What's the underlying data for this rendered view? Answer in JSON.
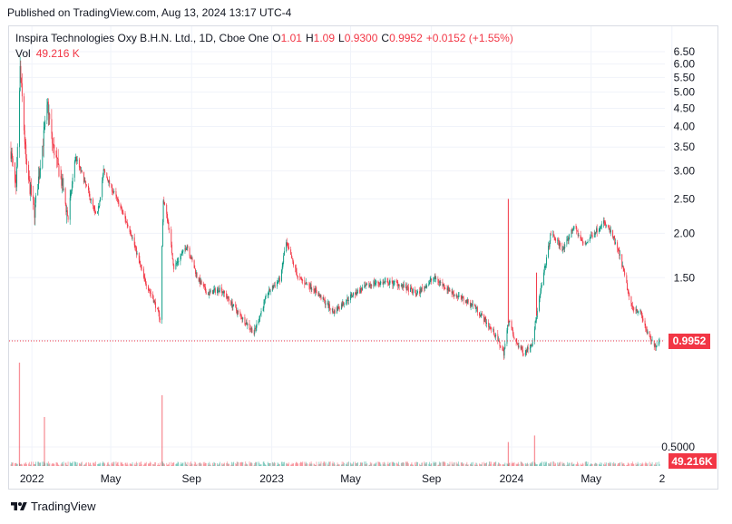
{
  "published": "Published on TradingView.com, Aug 13, 2024 13:17 UTC-4",
  "legend": {
    "title": "Inspira Technologies Oxy B.H.N. Ltd., 1D, Cboe One",
    "open_label": "O",
    "open": "1.01",
    "high_label": "H",
    "high": "1.09",
    "low_label": "L",
    "low": "0.9300",
    "close_label": "C",
    "close": "0.9952",
    "change": "+0.0152 (+1.55%)",
    "vol_label": "Vol",
    "vol": "49.216 K"
  },
  "footer": {
    "brand": "TradingView",
    "logo_icon": "tradingview-logo-icon"
  },
  "colors": {
    "up": "#089981",
    "down": "#f23645",
    "grid": "#f0f3fa",
    "price_line": "#f23645"
  },
  "chart_data": {
    "type": "candlestick",
    "y_scale": "log",
    "ylim": [
      0.45,
      7.2
    ],
    "y_ticks": [
      0.5,
      1.0,
      1.5,
      2.0,
      2.5,
      3.0,
      3.5,
      4.0,
      4.5,
      5.0,
      5.5,
      6.0,
      6.5
    ],
    "y_tick_labels": [
      "0.5000",
      "",
      "1.50",
      "2.00",
      "2.50",
      "3.00",
      "3.50",
      "4.00",
      "4.50",
      "5.00",
      "5.50",
      "6.00",
      "6.50"
    ],
    "x_range": [
      "2021-11-30",
      "2024-08-13"
    ],
    "x_ticks": [
      {
        "date": "2022-01-01",
        "label": "2022"
      },
      {
        "date": "2022-05-01",
        "label": "May"
      },
      {
        "date": "2022-09-01",
        "label": "Sep"
      },
      {
        "date": "2023-01-01",
        "label": "2023"
      },
      {
        "date": "2023-05-01",
        "label": "May"
      },
      {
        "date": "2023-09-01",
        "label": "Sep"
      },
      {
        "date": "2024-01-01",
        "label": "2024"
      },
      {
        "date": "2024-05-01",
        "label": "May"
      },
      {
        "date": "2024-09-01",
        "label": "2"
      }
    ],
    "last_price": 0.9952,
    "last_price_label": "0.9952",
    "last_volume_label": "49.216K",
    "price_keypoints": [
      [
        "2021-11-30",
        3.4
      ],
      [
        "2021-12-08",
        2.6
      ],
      [
        "2021-12-14",
        5.8
      ],
      [
        "2021-12-18",
        4.5
      ],
      [
        "2021-12-24",
        3.0
      ],
      [
        "2022-01-05",
        2.3
      ],
      [
        "2022-01-15",
        3.3
      ],
      [
        "2022-01-25",
        4.6
      ],
      [
        "2022-02-01",
        3.6
      ],
      [
        "2022-02-15",
        2.8
      ],
      [
        "2022-02-25",
        2.2
      ],
      [
        "2022-03-08",
        3.3
      ],
      [
        "2022-03-25",
        2.7
      ],
      [
        "2022-04-10",
        2.2
      ],
      [
        "2022-04-20",
        3.0
      ],
      [
        "2022-05-10",
        2.5
      ],
      [
        "2022-06-01",
        2.0
      ],
      [
        "2022-06-20",
        1.5
      ],
      [
        "2022-07-05",
        1.3
      ],
      [
        "2022-07-15",
        1.15
      ],
      [
        "2022-07-20",
        2.5
      ],
      [
        "2022-07-28",
        2.1
      ],
      [
        "2022-08-05",
        1.6
      ],
      [
        "2022-08-25",
        1.85
      ],
      [
        "2022-09-10",
        1.5
      ],
      [
        "2022-09-25",
        1.35
      ],
      [
        "2022-10-15",
        1.4
      ],
      [
        "2022-11-10",
        1.2
      ],
      [
        "2022-12-05",
        1.05
      ],
      [
        "2022-12-25",
        1.35
      ],
      [
        "2023-01-15",
        1.5
      ],
      [
        "2023-01-22",
        1.9
      ],
      [
        "2023-02-10",
        1.5
      ],
      [
        "2023-03-05",
        1.4
      ],
      [
        "2023-04-05",
        1.2
      ],
      [
        "2023-05-05",
        1.35
      ],
      [
        "2023-06-05",
        1.45
      ],
      [
        "2023-07-10",
        1.45
      ],
      [
        "2023-08-10",
        1.35
      ],
      [
        "2023-09-05",
        1.5
      ],
      [
        "2023-10-05",
        1.35
      ],
      [
        "2023-11-05",
        1.25
      ],
      [
        "2023-12-05",
        1.05
      ],
      [
        "2023-12-20",
        0.92
      ],
      [
        "2023-12-28",
        1.15
      ],
      [
        "2024-01-05",
        1.0
      ],
      [
        "2024-01-20",
        0.92
      ],
      [
        "2024-02-01",
        0.98
      ],
      [
        "2024-02-15",
        1.4
      ],
      [
        "2024-03-01",
        2.0
      ],
      [
        "2024-03-20",
        1.8
      ],
      [
        "2024-04-05",
        2.1
      ],
      [
        "2024-04-20",
        1.85
      ],
      [
        "2024-05-05",
        2.0
      ],
      [
        "2024-05-20",
        2.15
      ],
      [
        "2024-06-01",
        2.0
      ],
      [
        "2024-06-15",
        1.7
      ],
      [
        "2024-07-01",
        1.25
      ],
      [
        "2024-07-15",
        1.2
      ],
      [
        "2024-07-25",
        1.05
      ],
      [
        "2024-08-05",
        0.96
      ],
      [
        "2024-08-13",
        0.9952
      ]
    ],
    "volume_spikes": [
      {
        "date": "2021-12-13",
        "rel": 0.95
      },
      {
        "date": "2022-01-20",
        "rel": 0.45
      },
      {
        "date": "2022-07-18",
        "rel": 0.65
      },
      {
        "date": "2023-12-27",
        "rel": 0.22
      },
      {
        "date": "2024-02-05",
        "rel": 0.28
      }
    ],
    "price_spikes": [
      {
        "date": "2023-12-27",
        "high": 2.5
      },
      {
        "date": "2024-02-08",
        "high": 1.55
      }
    ]
  }
}
